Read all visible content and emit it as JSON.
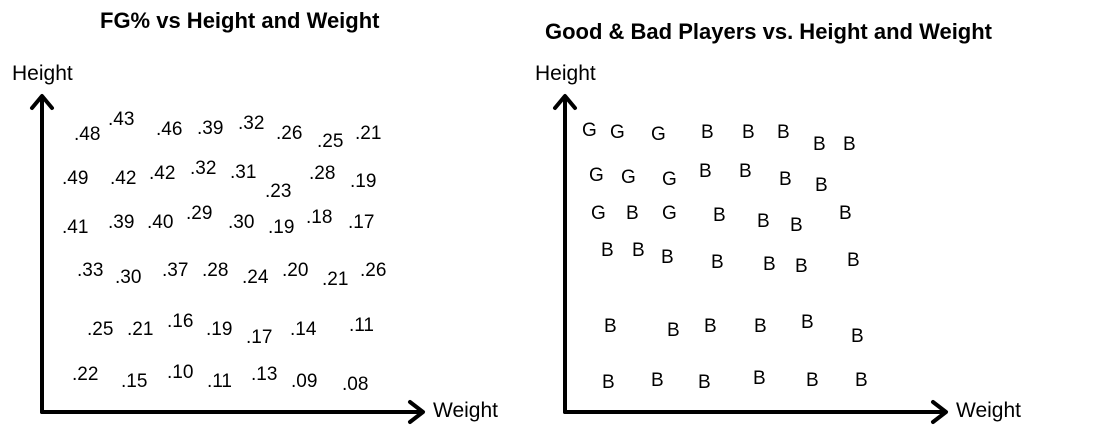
{
  "chart_data": [
    {
      "type": "table",
      "title": "FG% vs Height and Weight",
      "xlabel": "Weight",
      "ylabel": "Height",
      "rows": [
        [
          ".48",
          ".43",
          ".46",
          ".39",
          ".32",
          ".26",
          ".25",
          ".21"
        ],
        [
          ".49",
          ".42",
          ".42",
          ".32",
          ".31",
          ".23",
          ".28",
          ".19"
        ],
        [
          ".41",
          ".39",
          ".40",
          ".29",
          ".30",
          ".19",
          ".18",
          ".17"
        ],
        [
          ".33",
          ".30",
          ".37",
          ".28",
          ".24",
          ".20",
          ".21",
          ".26"
        ],
        [
          ".25",
          ".21",
          ".16",
          ".19",
          ".17",
          ".14",
          ".11"
        ],
        [
          ".22",
          ".15",
          ".10",
          ".11",
          ".13",
          ".09",
          ".08"
        ]
      ]
    },
    {
      "type": "table",
      "title": "Good & Bad Players vs. Height and Weight",
      "xlabel": "Weight",
      "ylabel": "Height",
      "rows": [
        [
          "G",
          "G",
          "G",
          "B",
          "B",
          "B",
          "B",
          "B"
        ],
        [
          "G",
          "G",
          "G",
          "B",
          "B",
          "B",
          "B"
        ],
        [
          "G",
          "B",
          "G",
          "B",
          "B",
          "B",
          "B"
        ],
        [
          "B",
          "B",
          "B",
          "B",
          "B",
          "B",
          "B"
        ],
        [
          "B",
          "B",
          "B",
          "B",
          "B",
          "B"
        ],
        [
          "B",
          "B",
          "B",
          "B",
          "B",
          "B"
        ]
      ]
    }
  ]
}
